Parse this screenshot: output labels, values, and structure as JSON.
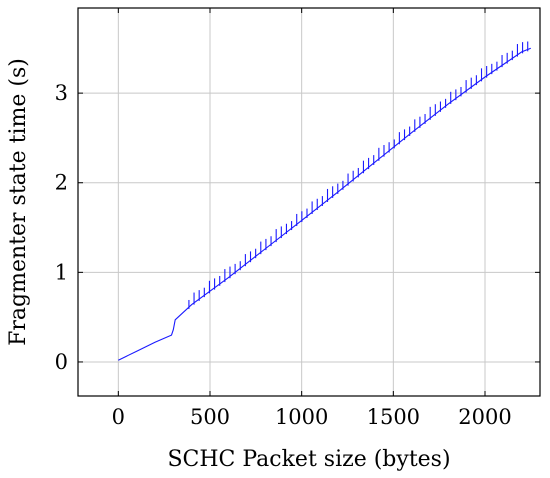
{
  "chart_data": {
    "type": "line",
    "xlabel": "SCHC Packet size (bytes)",
    "ylabel": "Fragmenter state time (s)",
    "xlim": [
      -220,
      2300
    ],
    "ylim": [
      -0.38,
      3.95
    ],
    "grid": true,
    "x_ticks": [
      0,
      500,
      1000,
      1500,
      2000
    ],
    "y_ticks": [
      0,
      1,
      2,
      3
    ],
    "x_tick_labels": [
      "0",
      "500",
      "1000",
      "1500",
      "2000"
    ],
    "y_tick_labels": [
      "0",
      "1",
      "2",
      "3"
    ],
    "series": [
      {
        "color": "#1a1aff",
        "x": [
          0,
          100,
          200,
          290,
          300,
          310,
          400,
          600,
          800,
          1000,
          1200,
          1400,
          1600,
          1800,
          2000,
          2100,
          2200,
          2250
        ],
        "y": [
          0.02,
          0.12,
          0.22,
          0.3,
          0.36,
          0.47,
          0.64,
          0.94,
          1.26,
          1.58,
          1.9,
          2.23,
          2.56,
          2.88,
          3.18,
          3.32,
          3.46,
          3.5
        ]
      }
    ],
    "spikes": {
      "start": 385,
      "end": 2250,
      "step": 28,
      "height_min": 0.08,
      "height_max": 0.13
    }
  }
}
